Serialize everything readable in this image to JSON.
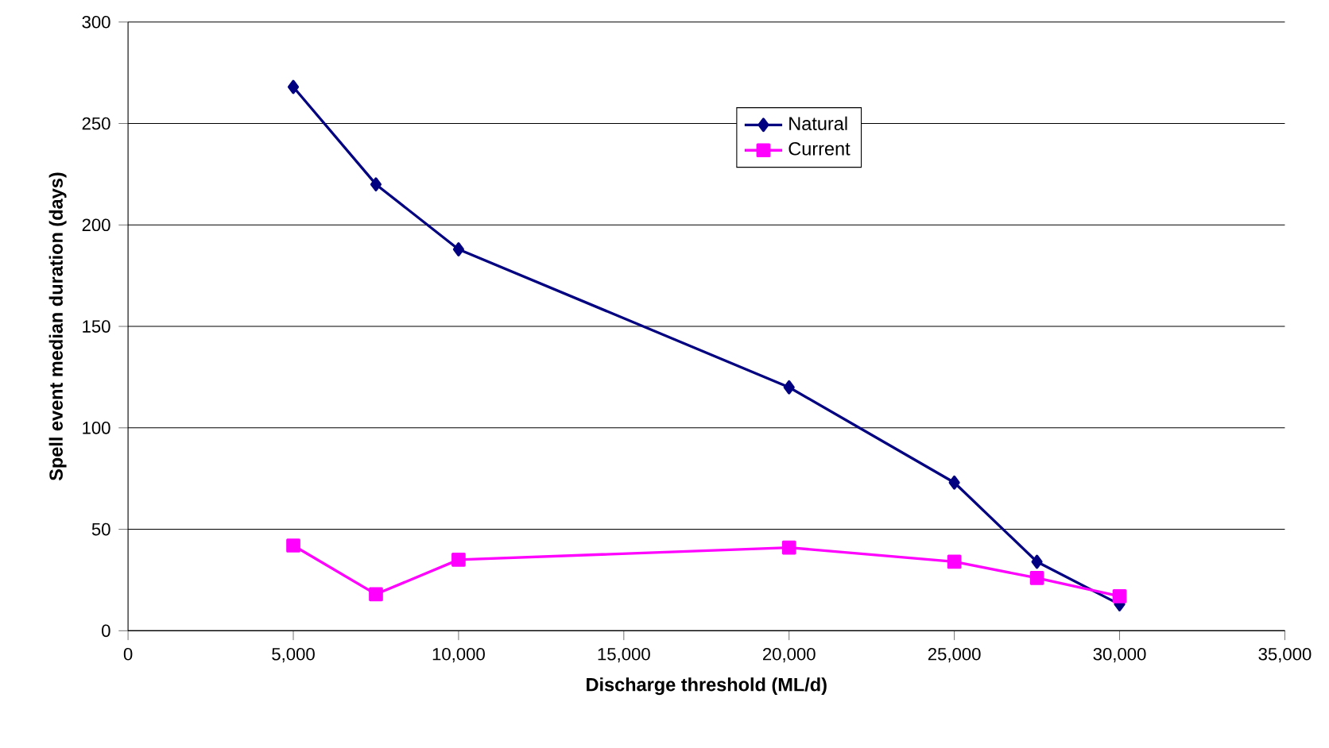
{
  "chart_data": {
    "type": "line",
    "xlabel": "Discharge threshold (ML/d)",
    "ylabel": "Spell event median duration (days)",
    "xlim": [
      0,
      35000
    ],
    "ylim": [
      0,
      300
    ],
    "xticks": [
      0,
      {
        "value": 5000,
        "label": "5,000"
      },
      {
        "value": 10000,
        "label": "10,000"
      },
      {
        "value": 15000,
        "label": "15,000"
      },
      {
        "value": 20000,
        "label": "20,000"
      },
      {
        "value": 25000,
        "label": "25,000"
      },
      {
        "value": 30000,
        "label": "30,000"
      },
      {
        "value": 35000,
        "label": "35,000"
      }
    ],
    "yticks": [
      0,
      50,
      100,
      150,
      200,
      250,
      300
    ],
    "grid": "y",
    "legend": "top",
    "series": [
      {
        "name": "Natural",
        "color": "#000080",
        "marker": "diamond",
        "x": [
          5000,
          7500,
          10000,
          20000,
          25000,
          27500,
          30000
        ],
        "values": [
          268,
          220,
          188,
          120,
          73,
          34,
          13
        ]
      },
      {
        "name": "Current",
        "color": "#ff00ff",
        "marker": "square",
        "x": [
          5000,
          7500,
          10000,
          20000,
          25000,
          27500,
          30000
        ],
        "values": [
          42,
          18,
          35,
          41,
          34,
          26,
          17
        ]
      }
    ]
  }
}
